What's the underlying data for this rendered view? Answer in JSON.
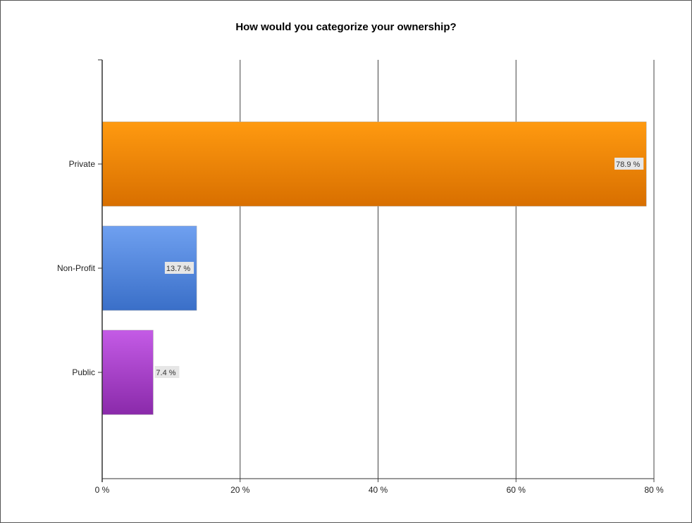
{
  "chart_data": {
    "type": "bar",
    "orientation": "horizontal",
    "title": "How would you categorize your ownership?",
    "categories": [
      "Private",
      "Non-Profit",
      "Public"
    ],
    "values": [
      78.9,
      13.7,
      7.4
    ],
    "data_labels": [
      "78.9 %",
      "13.7 %",
      "7.4 %"
    ],
    "xlim": [
      0,
      80
    ],
    "x_ticks": [
      0,
      20,
      40,
      60,
      80
    ],
    "x_tick_labels": [
      "0 %",
      "20 %",
      "40 %",
      "60 %",
      "80 %"
    ],
    "grid": true,
    "legend": "none",
    "colors": [
      "#f08400",
      "#4f84db",
      "#a23fc4"
    ]
  }
}
